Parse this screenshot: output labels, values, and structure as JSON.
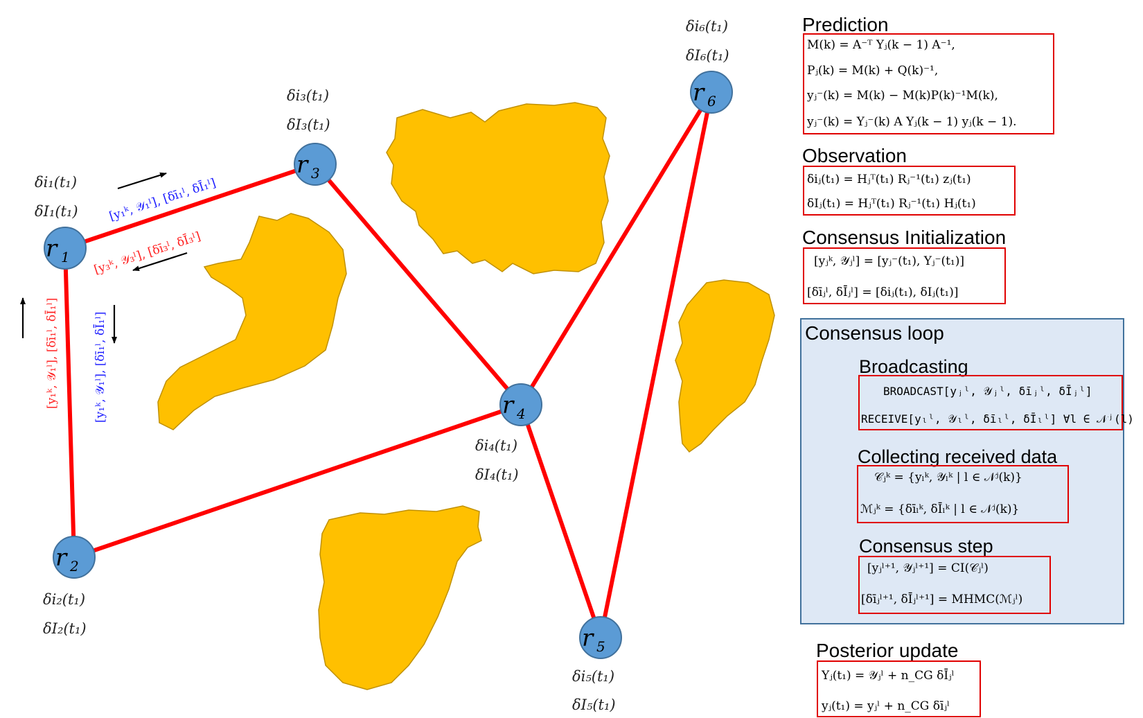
{
  "colors": {
    "edge": "#ff0000",
    "node_fill": "#5b9bd5",
    "node_stroke": "#41719c",
    "obstacle": "#ffc000",
    "obstacle_stroke": "#c09000",
    "box": "#e00000",
    "loop_bg": "#dee8f5",
    "loop_border": "#41719c"
  },
  "nodes": {
    "r1": {
      "name": "r",
      "sub": "1",
      "info_i": "δi₁(t₁)",
      "info_I": "δI₁(t₁)"
    },
    "r2": {
      "name": "r",
      "sub": "2",
      "info_i": "δi₂(t₁)",
      "info_I": "δI₂(t₁)"
    },
    "r3": {
      "name": "r",
      "sub": "3",
      "info_i": "δi₃(t₁)",
      "info_I": "δI₃(t₁)"
    },
    "r4": {
      "name": "r",
      "sub": "4",
      "info_i": "δi₄(t₁)",
      "info_I": "δI₄(t₁)"
    },
    "r5": {
      "name": "r",
      "sub": "5",
      "info_i": "δi₅(t₁)",
      "info_I": "δI₅(t₁)"
    },
    "r6": {
      "name": "r",
      "sub": "6",
      "info_i": "δi₆(t₁)",
      "info_I": "δI₆(t₁)"
    }
  },
  "messages": {
    "r1_to_r3": "[y₁ᵏ, 𝒴₁ˡ], [δī₁ˡ, δĪ₁ˡ]",
    "r3_to_r1": "[y₃ᵏ, 𝒴₃ˡ], [δī₃ˡ, δĪ₃ˡ]",
    "r2_to_r1": "[y₁ᵏ, 𝒴₁ˡ], [δī₁ˡ, δĪ₁ˡ]",
    "r1_to_r2": "[y₁ᵏ, 𝒴₁ˡ], [δī₁ˡ, δĪ₁ˡ]"
  },
  "panel": {
    "prediction": {
      "title": "Prediction",
      "eqs": [
        "M(k) = A⁻ᵀ Yⱼ(k − 1) A⁻¹,",
        "Pⱼ(k) = M(k) + Q(k)⁻¹,",
        "yⱼ⁻(k) = M(k) − M(k)P(k)⁻¹M(k),",
        "yⱼ⁻(k) = Yⱼ⁻(k) A Yⱼ(k − 1) yⱼ(k − 1)."
      ]
    },
    "observation": {
      "title": "Observation",
      "eqs": [
        "δiⱼ(t₁) = Hⱼᵀ(t₁) Rⱼ⁻¹(t₁) zⱼ(t₁)",
        "δIⱼ(t₁) = Hⱼᵀ(t₁) Rⱼ⁻¹(t₁) Hⱼ(t₁)"
      ]
    },
    "init": {
      "title": "Consensus Initialization",
      "eqs": [
        "[yⱼᵏ, 𝒴ⱼˡ] = [yⱼ⁻(t₁), Yⱼ⁻(t₁)]",
        "[δīⱼˡ, δĪⱼˡ] = [δiⱼ(t₁), δIⱼ(t₁)]"
      ]
    },
    "loop": {
      "title": "Consensus loop",
      "broadcasting": {
        "title": "Broadcasting",
        "eqs": [
          "BROADCAST[yⱼˡ, 𝒴ⱼˡ, δīⱼˡ, δĪⱼˡ]",
          "RECEIVE[yₗˡ, 𝒴ₗˡ, δīₗˡ, δĪₗˡ]   ∀l ∈ 𝒩ʲ(l)"
        ]
      },
      "collecting": {
        "title": "Collecting received data",
        "eqs": [
          "𝒞ⱼᵏ = {yₗᵏ, 𝒴ₗᵏ | l ∈ 𝒩ʲ(k)}",
          "ℳⱼᵏ = {δīₗᵏ, δĪₗᵏ | l ∈ 𝒩ʲ(k)}"
        ]
      },
      "step": {
        "title": "Consensus step",
        "eqs": [
          "[yⱼˡ⁺¹, 𝒴ⱼˡ⁺¹] = CI(𝒞ⱼˡ)",
          "[δīⱼˡ⁺¹, δĪⱼˡ⁺¹] = MHMC(ℳⱼˡ)"
        ]
      }
    },
    "posterior": {
      "title": "Posterior update",
      "eqs": [
        "Yⱼ(t₁) = 𝒴ⱼˡ + n_CG δĪⱼˡ",
        "yⱼ(t₁) = yⱼˡ + n_CG δīⱼˡ"
      ]
    }
  }
}
